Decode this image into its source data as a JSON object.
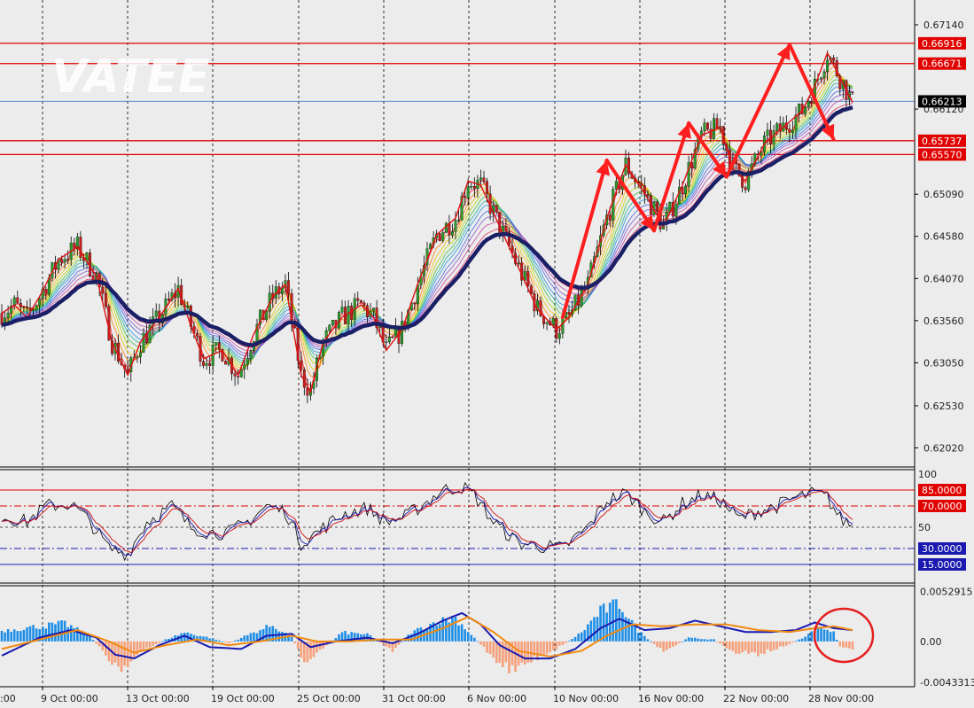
{
  "watermark": "VATEE",
  "colors": {
    "background": "#ececec",
    "grid": "#000000",
    "bull_candle": "#2a9a2a",
    "bear_candle": "#c81e1e",
    "ma_thick": "#1b1f66",
    "level_line": "#e00000",
    "current_line": "#1e64c8",
    "histogram_pos": "#1e8ee6",
    "histogram_neg": "#f5a07a",
    "macd_line": "#1a1ab0",
    "signal_line": "#f08a10",
    "annotation": "#ff1e1e"
  },
  "chart_data": [
    {
      "type": "candlestick",
      "panel": "price",
      "watermark": "VATEE",
      "x_tick_labels": [
        "9 Oct 00:00",
        "13 Oct 00:00",
        "19 Oct 00:00",
        "25 Oct 00:00",
        "31 Oct 00:00",
        "6 Nov 00:00",
        "10 Nov 00:00",
        "16 Nov 00:00",
        "22 Nov 00:00",
        "28 Nov 00:00"
      ],
      "x_first_label_fragment": ":00",
      "y_ticks": [
        "0.67140",
        "0.66120",
        "0.65090",
        "0.64580",
        "0.64070",
        "0.63560",
        "0.63050",
        "0.62530",
        "0.62020"
      ],
      "ylim": [
        0.618,
        0.6744
      ],
      "horizontal_levels": [
        {
          "label": "0.66916",
          "value": 0.66916
        },
        {
          "label": "0.66671",
          "value": 0.66671
        },
        {
          "label": "0.65737",
          "value": 0.65737
        },
        {
          "label": "0.65570",
          "value": 0.6557
        }
      ],
      "current_price": {
        "label": "0.66213",
        "value": 0.66213
      },
      "price_path": [
        [
          0,
          0.6365
        ],
        [
          4,
          0.6375
        ],
        [
          8,
          0.636
        ],
        [
          12,
          0.6385
        ],
        [
          18,
          0.643
        ],
        [
          24,
          0.6445
        ],
        [
          30,
          0.641
        ],
        [
          35,
          0.633
        ],
        [
          40,
          0.629
        ],
        [
          44,
          0.633
        ],
        [
          50,
          0.636
        ],
        [
          56,
          0.6395
        ],
        [
          60,
          0.635
        ],
        [
          64,
          0.631
        ],
        [
          70,
          0.632
        ],
        [
          75,
          0.629
        ],
        [
          80,
          0.634
        ],
        [
          86,
          0.6385
        ],
        [
          90,
          0.64
        ],
        [
          95,
          0.629
        ],
        [
          98,
          0.627
        ],
        [
          102,
          0.633
        ],
        [
          108,
          0.636
        ],
        [
          114,
          0.6375
        ],
        [
          118,
          0.636
        ],
        [
          122,
          0.632
        ],
        [
          127,
          0.6345
        ],
        [
          132,
          0.64
        ],
        [
          138,
          0.646
        ],
        [
          144,
          0.648
        ],
        [
          148,
          0.6525
        ],
        [
          152,
          0.652
        ],
        [
          158,
          0.647
        ],
        [
          164,
          0.642
        ],
        [
          170,
          0.637
        ],
        [
          176,
          0.6345
        ],
        [
          180,
          0.636
        ],
        [
          186,
          0.64
        ],
        [
          192,
          0.648
        ],
        [
          198,
          0.6545
        ],
        [
          204,
          0.651
        ],
        [
          210,
          0.647
        ],
        [
          216,
          0.652
        ],
        [
          222,
          0.658
        ],
        [
          228,
          0.659
        ],
        [
          232,
          0.654
        ],
        [
          236,
          0.6525
        ],
        [
          242,
          0.657
        ],
        [
          248,
          0.659
        ],
        [
          254,
          0.661
        ],
        [
          258,
          0.664
        ],
        [
          262,
          0.668
        ],
        [
          266,
          0.665
        ],
        [
          270,
          0.662
        ]
      ],
      "n_candles": 271,
      "oscillator_panel": {
        "type": "line",
        "y_ticks": [
          "100",
          "50"
        ],
        "ylim": [
          0,
          100
        ],
        "levels": [
          {
            "label": "85.0000",
            "value": 85,
            "color": "#e00000",
            "style": "solid"
          },
          {
            "label": "70.0000",
            "value": 70,
            "color": "#e00000",
            "style": "dashdot"
          },
          {
            "label": "50",
            "value": 50,
            "color": "#555555",
            "style": "dashed"
          },
          {
            "label": "30.0000",
            "value": 30,
            "color": "#1a1ab0",
            "style": "dashdot"
          },
          {
            "label": "15.0000",
            "value": 15,
            "color": "#1a1ab0",
            "style": "solid"
          }
        ],
        "series_path": [
          [
            0,
            60
          ],
          [
            8,
            55
          ],
          [
            14,
            70
          ],
          [
            22,
            72
          ],
          [
            28,
            55
          ],
          [
            34,
            30
          ],
          [
            40,
            25
          ],
          [
            46,
            55
          ],
          [
            54,
            70
          ],
          [
            60,
            50
          ],
          [
            66,
            45
          ],
          [
            72,
            45
          ],
          [
            78,
            55
          ],
          [
            84,
            70
          ],
          [
            90,
            65
          ],
          [
            95,
            35
          ],
          [
            100,
            45
          ],
          [
            108,
            62
          ],
          [
            116,
            68
          ],
          [
            122,
            55
          ],
          [
            128,
            60
          ],
          [
            134,
            72
          ],
          [
            140,
            85
          ],
          [
            146,
            88
          ],
          [
            150,
            80
          ],
          [
            156,
            55
          ],
          [
            164,
            35
          ],
          [
            172,
            32
          ],
          [
            178,
            30
          ],
          [
            186,
            50
          ],
          [
            192,
            75
          ],
          [
            198,
            82
          ],
          [
            204,
            65
          ],
          [
            210,
            55
          ],
          [
            216,
            72
          ],
          [
            222,
            80
          ],
          [
            228,
            75
          ],
          [
            234,
            58
          ],
          [
            240,
            65
          ],
          [
            246,
            70
          ],
          [
            252,
            78
          ],
          [
            258,
            82
          ],
          [
            262,
            78
          ],
          [
            266,
            58
          ],
          [
            270,
            52
          ]
        ]
      },
      "macd_panel": {
        "type": "bar+line",
        "y_ticks": [
          "0.0052915",
          "0.00",
          "-0.0043313"
        ],
        "ylim": [
          -0.0047,
          0.0058
        ],
        "histogram_path": [
          [
            0,
            0.0012
          ],
          [
            10,
            0.0016
          ],
          [
            20,
            0.002
          ],
          [
            28,
            0.0006
          ],
          [
            34,
            -0.002
          ],
          [
            38,
            -0.003
          ],
          [
            44,
            -0.0012
          ],
          [
            52,
            0.0002
          ],
          [
            58,
            0.001
          ],
          [
            66,
            0.0004
          ],
          [
            72,
            -0.0002
          ],
          [
            80,
            0.001
          ],
          [
            86,
            0.0018
          ],
          [
            92,
            0.0004
          ],
          [
            96,
            -0.0022
          ],
          [
            102,
            -0.0008
          ],
          [
            108,
            0.001
          ],
          [
            116,
            0.0008
          ],
          [
            124,
            -0.001
          ],
          [
            130,
            0.001
          ],
          [
            138,
            0.0022
          ],
          [
            144,
            0.0026
          ],
          [
            150,
            0.0004
          ],
          [
            156,
            -0.0018
          ],
          [
            162,
            -0.0032
          ],
          [
            170,
            -0.0018
          ],
          [
            178,
            -0.0004
          ],
          [
            184,
            0.001
          ],
          [
            190,
            0.0034
          ],
          [
            196,
            0.0042
          ],
          [
            202,
            0.0012
          ],
          [
            210,
            -0.0012
          ],
          [
            218,
            0.0004
          ],
          [
            226,
            0.0002
          ],
          [
            232,
            -0.0012
          ],
          [
            240,
            -0.0014
          ],
          [
            248,
            -0.0006
          ],
          [
            254,
            0.0004
          ],
          [
            260,
            0.0016
          ],
          [
            264,
            0.001
          ],
          [
            266,
            -0.0006
          ],
          [
            270,
            -0.001
          ]
        ],
        "macd_path": [
          [
            0,
            -0.0015
          ],
          [
            12,
            0.0004
          ],
          [
            22,
            0.0012
          ],
          [
            30,
            0.0004
          ],
          [
            36,
            -0.0014
          ],
          [
            42,
            -0.0018
          ],
          [
            50,
            -0.0004
          ],
          [
            58,
            0.0006
          ],
          [
            66,
            -0.0006
          ],
          [
            76,
            -0.0008
          ],
          [
            84,
            0.0006
          ],
          [
            92,
            0.0008
          ],
          [
            98,
            -0.0006
          ],
          [
            106,
            0.0
          ],
          [
            116,
            0.0004
          ],
          [
            124,
            -0.0002
          ],
          [
            132,
            0.0008
          ],
          [
            140,
            0.0022
          ],
          [
            146,
            0.003
          ],
          [
            152,
            0.0018
          ],
          [
            158,
            -0.0004
          ],
          [
            166,
            -0.0018
          ],
          [
            174,
            -0.0018
          ],
          [
            182,
            -0.0008
          ],
          [
            190,
            0.0014
          ],
          [
            196,
            0.0024
          ],
          [
            204,
            0.0012
          ],
          [
            212,
            0.0014
          ],
          [
            220,
            0.0022
          ],
          [
            228,
            0.0016
          ],
          [
            236,
            0.001
          ],
          [
            244,
            0.001
          ],
          [
            252,
            0.0012
          ],
          [
            258,
            0.002
          ],
          [
            264,
            0.0014
          ],
          [
            270,
            0.0012
          ]
        ],
        "signal_path": [
          [
            0,
            -0.0008
          ],
          [
            12,
            0.0002
          ],
          [
            24,
            0.0012
          ],
          [
            34,
            0.0
          ],
          [
            42,
            -0.0012
          ],
          [
            52,
            -0.0004
          ],
          [
            62,
            0.0002
          ],
          [
            72,
            -0.0004
          ],
          [
            82,
            0.0
          ],
          [
            92,
            0.0006
          ],
          [
            100,
            0.0
          ],
          [
            110,
            0.0
          ],
          [
            120,
            0.0002
          ],
          [
            130,
            0.0002
          ],
          [
            140,
            0.0014
          ],
          [
            148,
            0.0026
          ],
          [
            156,
            0.001
          ],
          [
            164,
            -0.001
          ],
          [
            174,
            -0.0016
          ],
          [
            184,
            -0.001
          ],
          [
            192,
            0.0006
          ],
          [
            200,
            0.0018
          ],
          [
            210,
            0.0016
          ],
          [
            220,
            0.0018
          ],
          [
            230,
            0.0018
          ],
          [
            240,
            0.0012
          ],
          [
            250,
            0.001
          ],
          [
            258,
            0.0014
          ],
          [
            264,
            0.0016
          ],
          [
            270,
            0.0012
          ]
        ]
      },
      "annotation_arrows": [
        [
          [
            178,
            0.636
          ],
          [
            192,
            0.655
          ]
        ],
        [
          [
            192,
            0.655
          ],
          [
            207,
            0.6465
          ]
        ],
        [
          [
            207,
            0.6465
          ],
          [
            218,
            0.6595
          ]
        ],
        [
          [
            218,
            0.6595
          ],
          [
            230,
            0.653
          ]
        ],
        [
          [
            230,
            0.653
          ],
          [
            250,
            0.669
          ]
        ],
        [
          [
            250,
            0.669
          ],
          [
            264,
            0.6575
          ]
        ]
      ]
    }
  ]
}
